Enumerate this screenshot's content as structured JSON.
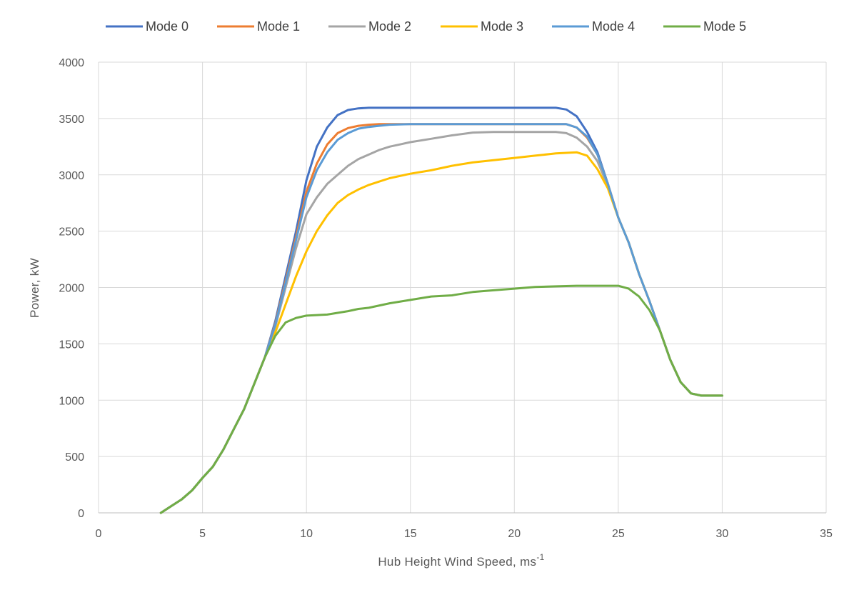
{
  "chart_data": {
    "type": "line",
    "title": "",
    "xlabel": "Hub Height Wind Speed,  ms",
    "xlabel_superscript": "-1",
    "ylabel": "Power, kW",
    "xlim": [
      0,
      35
    ],
    "ylim": [
      0,
      4000
    ],
    "xticks": [
      0,
      5,
      10,
      15,
      20,
      25,
      30,
      35
    ],
    "yticks": [
      0,
      500,
      1000,
      1500,
      2000,
      2500,
      3000,
      3500,
      4000
    ],
    "grid": true,
    "legend_position": "top",
    "series": [
      {
        "name": "Mode 0",
        "color": "#4472C4",
        "points": [
          [
            3,
            0
          ],
          [
            3.5,
            60
          ],
          [
            4,
            120
          ],
          [
            4.5,
            200
          ],
          [
            5,
            310
          ],
          [
            5.5,
            410
          ],
          [
            6,
            560
          ],
          [
            6.5,
            740
          ],
          [
            7,
            920
          ],
          [
            7.5,
            1150
          ],
          [
            8,
            1380
          ],
          [
            8.5,
            1700
          ],
          [
            9,
            2100
          ],
          [
            9.5,
            2500
          ],
          [
            10,
            2950
          ],
          [
            10.5,
            3250
          ],
          [
            11,
            3420
          ],
          [
            11.5,
            3530
          ],
          [
            12,
            3575
          ],
          [
            12.5,
            3590
          ],
          [
            13,
            3595
          ],
          [
            15,
            3595
          ],
          [
            20,
            3595
          ],
          [
            22,
            3595
          ],
          [
            22.5,
            3580
          ],
          [
            23,
            3520
          ],
          [
            23.5,
            3380
          ],
          [
            24,
            3200
          ],
          [
            24.5,
            2920
          ],
          [
            25,
            2620
          ],
          [
            25.5,
            2400
          ],
          [
            26,
            2120
          ],
          [
            26.5,
            1880
          ],
          [
            27,
            1620
          ],
          [
            27.5,
            1360
          ],
          [
            28,
            1160
          ],
          [
            28.5,
            1060
          ],
          [
            29,
            1040
          ],
          [
            30,
            1040
          ]
        ]
      },
      {
        "name": "Mode 1",
        "color": "#ED7D31",
        "points": [
          [
            3,
            0
          ],
          [
            3.5,
            60
          ],
          [
            4,
            120
          ],
          [
            4.5,
            200
          ],
          [
            5,
            310
          ],
          [
            5.5,
            410
          ],
          [
            6,
            560
          ],
          [
            6.5,
            740
          ],
          [
            7,
            920
          ],
          [
            7.5,
            1150
          ],
          [
            8,
            1380
          ],
          [
            8.5,
            1680
          ],
          [
            9,
            2060
          ],
          [
            9.5,
            2450
          ],
          [
            10,
            2850
          ],
          [
            10.5,
            3100
          ],
          [
            11,
            3270
          ],
          [
            11.5,
            3370
          ],
          [
            12,
            3415
          ],
          [
            12.5,
            3435
          ],
          [
            13,
            3445
          ],
          [
            13.5,
            3450
          ],
          [
            15,
            3450
          ],
          [
            20,
            3450
          ],
          [
            22.5,
            3450
          ],
          [
            23,
            3420
          ],
          [
            23.5,
            3330
          ],
          [
            24,
            3180
          ],
          [
            24.5,
            2920
          ],
          [
            25,
            2620
          ],
          [
            25.5,
            2400
          ],
          [
            26,
            2120
          ],
          [
            26.5,
            1880
          ],
          [
            27,
            1620
          ],
          [
            27.5,
            1360
          ],
          [
            28,
            1160
          ],
          [
            28.5,
            1060
          ],
          [
            29,
            1040
          ],
          [
            30,
            1040
          ]
        ]
      },
      {
        "name": "Mode 2",
        "color": "#A5A5A5",
        "points": [
          [
            3,
            0
          ],
          [
            3.5,
            60
          ],
          [
            4,
            120
          ],
          [
            4.5,
            200
          ],
          [
            5,
            310
          ],
          [
            5.5,
            410
          ],
          [
            6,
            560
          ],
          [
            6.5,
            740
          ],
          [
            7,
            920
          ],
          [
            7.5,
            1150
          ],
          [
            8,
            1380
          ],
          [
            8.5,
            1650
          ],
          [
            9,
            2000
          ],
          [
            9.5,
            2350
          ],
          [
            10,
            2650
          ],
          [
            10.5,
            2800
          ],
          [
            11,
            2920
          ],
          [
            11.5,
            3000
          ],
          [
            12,
            3080
          ],
          [
            12.5,
            3140
          ],
          [
            13,
            3180
          ],
          [
            13.5,
            3220
          ],
          [
            14,
            3250
          ],
          [
            14.5,
            3270
          ],
          [
            15,
            3290
          ],
          [
            16,
            3320
          ],
          [
            17,
            3350
          ],
          [
            18,
            3375
          ],
          [
            19,
            3380
          ],
          [
            20,
            3380
          ],
          [
            21,
            3380
          ],
          [
            22,
            3380
          ],
          [
            22.5,
            3370
          ],
          [
            23,
            3330
          ],
          [
            23.5,
            3250
          ],
          [
            24,
            3120
          ],
          [
            24.5,
            2900
          ],
          [
            25,
            2620
          ],
          [
            25.5,
            2400
          ],
          [
            26,
            2120
          ],
          [
            26.5,
            1880
          ],
          [
            27,
            1620
          ],
          [
            27.5,
            1360
          ],
          [
            28,
            1160
          ],
          [
            28.5,
            1060
          ],
          [
            29,
            1040
          ],
          [
            30,
            1040
          ]
        ]
      },
      {
        "name": "Mode 3",
        "color": "#FFC000",
        "points": [
          [
            3,
            0
          ],
          [
            3.5,
            60
          ],
          [
            4,
            120
          ],
          [
            4.5,
            200
          ],
          [
            5,
            310
          ],
          [
            5.5,
            410
          ],
          [
            6,
            560
          ],
          [
            6.5,
            740
          ],
          [
            7,
            920
          ],
          [
            7.5,
            1150
          ],
          [
            8,
            1380
          ],
          [
            8.5,
            1600
          ],
          [
            9,
            1850
          ],
          [
            9.5,
            2100
          ],
          [
            10,
            2320
          ],
          [
            10.5,
            2500
          ],
          [
            11,
            2640
          ],
          [
            11.5,
            2750
          ],
          [
            12,
            2820
          ],
          [
            12.5,
            2870
          ],
          [
            13,
            2910
          ],
          [
            13.5,
            2940
          ],
          [
            14,
            2970
          ],
          [
            15,
            3010
          ],
          [
            16,
            3040
          ],
          [
            17,
            3080
          ],
          [
            18,
            3110
          ],
          [
            19,
            3130
          ],
          [
            20,
            3150
          ],
          [
            21,
            3170
          ],
          [
            22,
            3190
          ],
          [
            23,
            3200
          ],
          [
            23.5,
            3170
          ],
          [
            24,
            3050
          ],
          [
            24.5,
            2880
          ],
          [
            25,
            2620
          ],
          [
            25.5,
            2400
          ],
          [
            26,
            2120
          ],
          [
            26.5,
            1880
          ],
          [
            27,
            1620
          ],
          [
            27.5,
            1360
          ],
          [
            28,
            1160
          ],
          [
            28.5,
            1060
          ],
          [
            29,
            1040
          ],
          [
            30,
            1040
          ]
        ]
      },
      {
        "name": "Mode 4",
        "color": "#5B9BD5",
        "points": [
          [
            3,
            0
          ],
          [
            3.5,
            60
          ],
          [
            4,
            120
          ],
          [
            4.5,
            200
          ],
          [
            5,
            310
          ],
          [
            5.5,
            410
          ],
          [
            6,
            560
          ],
          [
            6.5,
            740
          ],
          [
            7,
            920
          ],
          [
            7.5,
            1150
          ],
          [
            8,
            1380
          ],
          [
            8.5,
            1670
          ],
          [
            9,
            2040
          ],
          [
            9.5,
            2420
          ],
          [
            10,
            2800
          ],
          [
            10.5,
            3040
          ],
          [
            11,
            3200
          ],
          [
            11.5,
            3310
          ],
          [
            12,
            3370
          ],
          [
            12.5,
            3410
          ],
          [
            13,
            3425
          ],
          [
            13.5,
            3435
          ],
          [
            14,
            3445
          ],
          [
            15,
            3450
          ],
          [
            20,
            3450
          ],
          [
            22.5,
            3450
          ],
          [
            23,
            3420
          ],
          [
            23.5,
            3340
          ],
          [
            24,
            3180
          ],
          [
            24.5,
            2920
          ],
          [
            25,
            2620
          ],
          [
            25.5,
            2400
          ],
          [
            26,
            2120
          ],
          [
            26.5,
            1880
          ],
          [
            27,
            1620
          ],
          [
            27.5,
            1360
          ],
          [
            28,
            1160
          ],
          [
            28.5,
            1060
          ],
          [
            29,
            1040
          ],
          [
            30,
            1040
          ]
        ]
      },
      {
        "name": "Mode 5",
        "color": "#70AD47",
        "points": [
          [
            3,
            0
          ],
          [
            3.5,
            60
          ],
          [
            4,
            120
          ],
          [
            4.5,
            200
          ],
          [
            5,
            310
          ],
          [
            5.5,
            410
          ],
          [
            6,
            560
          ],
          [
            6.5,
            740
          ],
          [
            7,
            920
          ],
          [
            7.5,
            1150
          ],
          [
            8,
            1380
          ],
          [
            8.5,
            1570
          ],
          [
            9,
            1690
          ],
          [
            9.5,
            1730
          ],
          [
            10,
            1750
          ],
          [
            11,
            1760
          ],
          [
            12,
            1790
          ],
          [
            12.5,
            1810
          ],
          [
            13,
            1820
          ],
          [
            14,
            1860
          ],
          [
            15,
            1890
          ],
          [
            16,
            1920
          ],
          [
            17,
            1930
          ],
          [
            18,
            1960
          ],
          [
            19,
            1975
          ],
          [
            20,
            1990
          ],
          [
            21,
            2005
          ],
          [
            22,
            2010
          ],
          [
            23,
            2015
          ],
          [
            24,
            2015
          ],
          [
            25,
            2015
          ],
          [
            25.5,
            1990
          ],
          [
            26,
            1920
          ],
          [
            26.5,
            1800
          ],
          [
            27,
            1620
          ],
          [
            27.5,
            1360
          ],
          [
            28,
            1160
          ],
          [
            28.5,
            1060
          ],
          [
            29,
            1040
          ],
          [
            30,
            1040
          ]
        ]
      }
    ]
  }
}
